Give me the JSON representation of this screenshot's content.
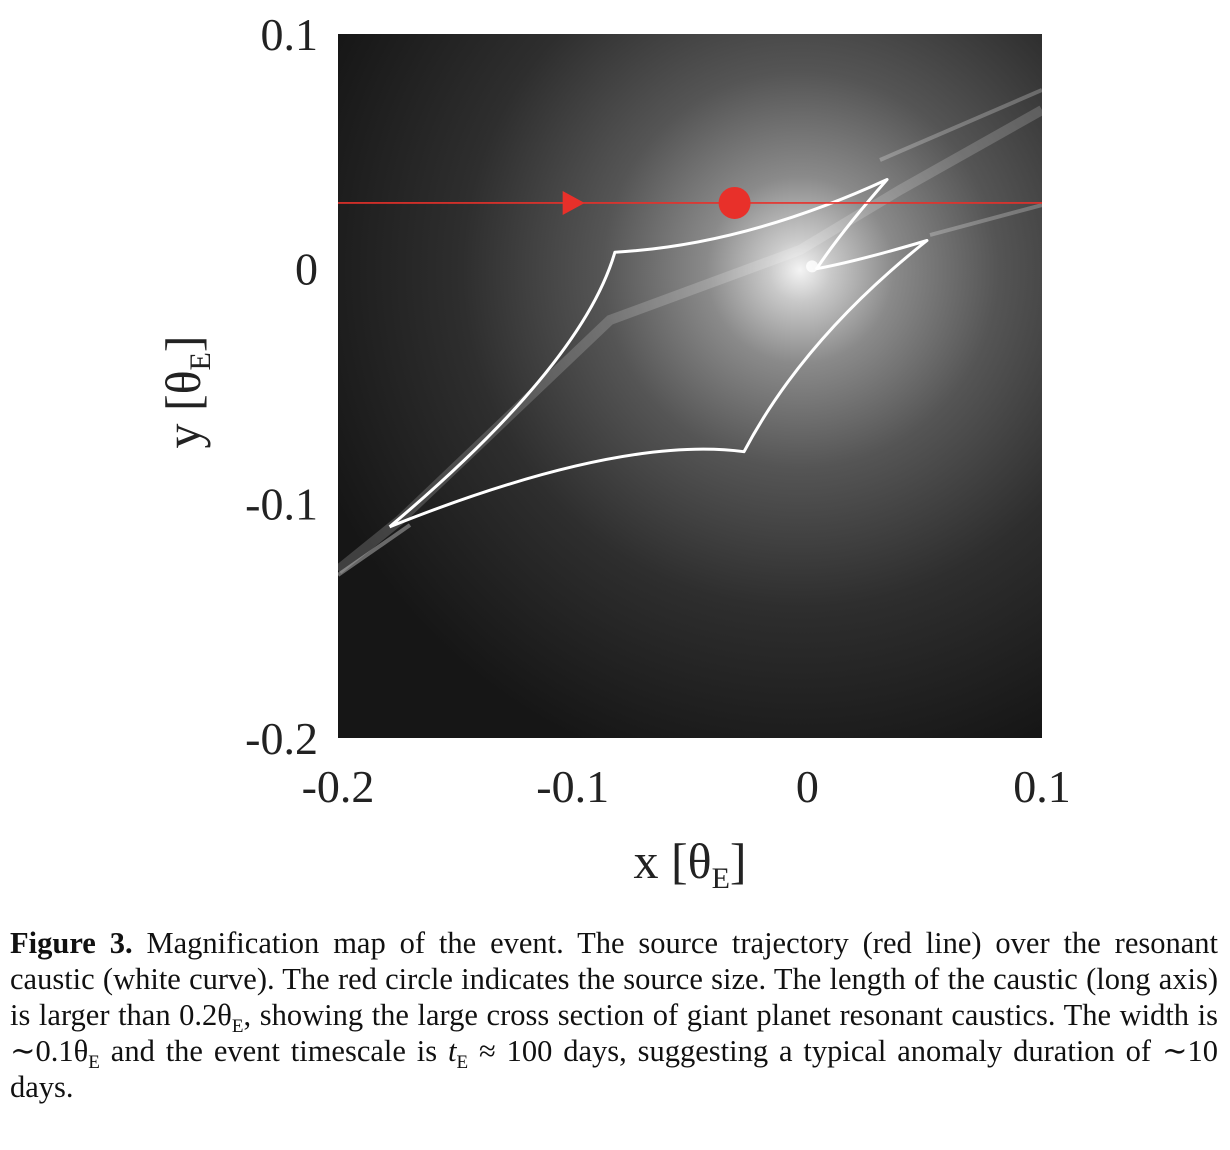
{
  "chart_data": {
    "type": "heatmap",
    "xlabel": "x [θE]",
    "ylabel": "y [θE]",
    "xlim": [
      -0.2,
      0.1
    ],
    "ylim": [
      -0.2,
      0.1
    ],
    "x_ticks": [
      "-0.2",
      "-0.1",
      "0",
      "0.1"
    ],
    "y_ticks": [
      "0.1",
      "0",
      "-0.1",
      "-0.2"
    ],
    "x_tick_values": [
      -0.2,
      -0.1,
      0,
      0.1
    ],
    "y_tick_values": [
      0.1,
      0,
      -0.1,
      -0.2
    ],
    "trajectory": {
      "y": 0.028,
      "direction": "+x",
      "arrow_x": -0.1,
      "color": "#e8302a"
    },
    "source": {
      "x": -0.031,
      "y": 0.028,
      "color": "#e8302a"
    },
    "caustic": {
      "color": "#ffffff",
      "cusps": [
        {
          "x": -0.178,
          "y": -0.11
        },
        {
          "x": -0.082,
          "y": 0.007
        },
        {
          "x": 0.034,
          "y": 0.038
        },
        {
          "x": 0.004,
          "y": 0.0
        },
        {
          "x": 0.051,
          "y": 0.012
        },
        {
          "x": -0.027,
          "y": -0.078
        }
      ]
    },
    "colormap": "grayscale",
    "magnification_peak": {
      "x": 0.002,
      "y": 0.001
    }
  },
  "caption": {
    "label": "Figure 3.",
    "text_1": " Magnification map of the event. The source trajectory (red line) over the resonant caustic (white curve). The red circle indicates the source size. The length of the caustic (long axis) is larger than 0.2θ",
    "sub_1": "E",
    "text_2": ", showing the large cross section of giant planet resonant caustics. The width is ∼0.1θ",
    "sub_2": "E",
    "text_3": " and the event timescale is ",
    "t_symbol": "t",
    "sub_3": "E",
    "text_4": " ≈ 100 days, suggesting a typical anomaly duration of ∼10 days."
  }
}
